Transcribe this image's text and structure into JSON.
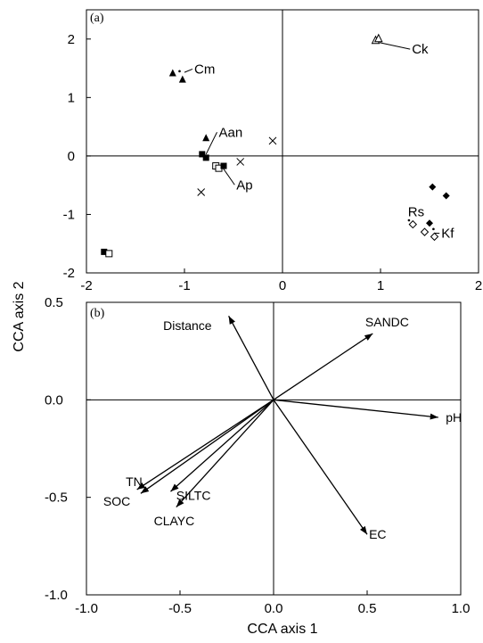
{
  "figure": {
    "ylabel": "CCA axis 2",
    "xlabel": "CCA axis 1"
  },
  "chart_data": [
    {
      "panel": "(a)",
      "type": "scatter",
      "xlim": [
        -2,
        2
      ],
      "ylim": [
        -2,
        2.5
      ],
      "xticks": [
        "-2",
        "-1",
        "0",
        "1",
        "2"
      ],
      "yticks": [
        "-2",
        "-1",
        "0",
        "1",
        "2"
      ],
      "zero_lines": true,
      "points": [
        {
          "x": -1.12,
          "y": 1.41,
          "marker": "triangle-filled"
        },
        {
          "x": -1.05,
          "y": 1.45,
          "marker": "dot"
        },
        {
          "x": -1.02,
          "y": 1.3,
          "marker": "triangle-filled"
        },
        {
          "x": -0.78,
          "y": 0.3,
          "marker": "triangle-filled"
        },
        {
          "x": -0.82,
          "y": 0.03,
          "marker": "square-filled"
        },
        {
          "x": -0.78,
          "y": -0.03,
          "marker": "square-filled"
        },
        {
          "x": -0.68,
          "y": -0.17,
          "marker": "square-open"
        },
        {
          "x": -0.65,
          "y": -0.21,
          "marker": "square-open"
        },
        {
          "x": -0.6,
          "y": -0.17,
          "marker": "square-filled"
        },
        {
          "x": -0.43,
          "y": -0.1,
          "marker": "cross"
        },
        {
          "x": -0.83,
          "y": -0.62,
          "marker": "cross"
        },
        {
          "x": -0.1,
          "y": 0.26,
          "marker": "cross"
        },
        {
          "x": -1.82,
          "y": -1.64,
          "marker": "square-filled"
        },
        {
          "x": -1.77,
          "y": -1.67,
          "marker": "square-open"
        },
        {
          "x": 0.95,
          "y": 1.97,
          "marker": "triangle-open"
        },
        {
          "x": 0.98,
          "y": 2.0,
          "marker": "triangle-open"
        },
        {
          "x": 1.53,
          "y": -0.53,
          "marker": "diamond-filled"
        },
        {
          "x": 1.67,
          "y": -0.68,
          "marker": "diamond-filled"
        },
        {
          "x": 1.5,
          "y": -1.15,
          "marker": "diamond-filled"
        },
        {
          "x": 1.54,
          "y": -1.25,
          "marker": "dot"
        },
        {
          "x": 1.55,
          "y": -1.38,
          "marker": "diamond-open"
        },
        {
          "x": 1.45,
          "y": -1.3,
          "marker": "diamond-open"
        },
        {
          "x": 1.33,
          "y": -1.17,
          "marker": "diamond-open"
        },
        {
          "x": 1.29,
          "y": -1.1,
          "marker": "dot"
        }
      ],
      "annotations": [
        {
          "text": "Cm",
          "x": -0.9,
          "y": 1.41,
          "anchor_x": -1.0,
          "anchor_y": 1.43
        },
        {
          "text": "Ck",
          "x": 1.32,
          "y": 1.75,
          "anchor_x": 0.99,
          "anchor_y": 1.94
        },
        {
          "text": "Aan",
          "x": -0.65,
          "y": 0.33,
          "anchor_x": -0.78,
          "anchor_y": 0.03
        },
        {
          "text": "Ap",
          "x": -0.47,
          "y": -0.57,
          "anchor_x": -0.61,
          "anchor_y": -0.2
        },
        {
          "text": "Rs",
          "x": 1.28,
          "y": -1.03,
          "anchor_x": null,
          "anchor_y": null
        },
        {
          "text": "Kf",
          "x": 1.62,
          "y": -1.4,
          "anchor_x": 1.55,
          "anchor_y": -1.32
        }
      ]
    },
    {
      "panel": "(b)",
      "type": "biplot-vectors",
      "xlim": [
        -1.0,
        1.0
      ],
      "ylim": [
        -1.0,
        0.5
      ],
      "xticks": [
        "-1.0",
        "-0.5",
        "0.0",
        "0.5",
        "1.0"
      ],
      "yticks": [
        "-1.0",
        "-0.5",
        "0.0",
        "0.5"
      ],
      "zero_lines": true,
      "vectors": [
        {
          "name": "Distance",
          "x": -0.24,
          "y": 0.43,
          "label_x": -0.59,
          "label_y": 0.38
        },
        {
          "name": "SANDC",
          "x": 0.53,
          "y": 0.34,
          "label_x": 0.49,
          "label_y": 0.4
        },
        {
          "name": "pH",
          "x": 0.88,
          "y": -0.09,
          "label_x": 0.92,
          "label_y": -0.09
        },
        {
          "name": "EC",
          "x": 0.5,
          "y": -0.69,
          "label_x": 0.51,
          "label_y": -0.69
        },
        {
          "name": "TN",
          "x": -0.73,
          "y": -0.46,
          "label_x": -0.79,
          "label_y": -0.42
        },
        {
          "name": "SOC",
          "x": -0.71,
          "y": -0.48,
          "label_x": -0.91,
          "label_y": -0.52
        },
        {
          "name": "SILTC",
          "x": -0.55,
          "y": -0.47,
          "label_x": -0.52,
          "label_y": -0.49
        },
        {
          "name": "CLAYC",
          "x": -0.52,
          "y": -0.55,
          "label_x": -0.64,
          "label_y": -0.62
        }
      ]
    }
  ]
}
